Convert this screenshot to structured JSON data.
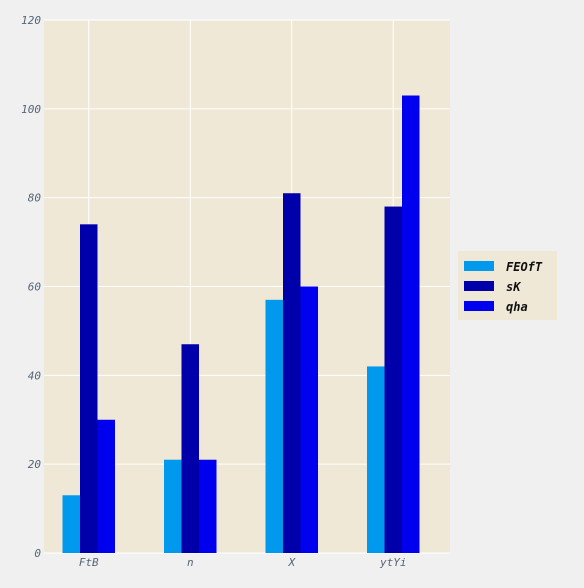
{
  "chart_data": {
    "type": "bar",
    "title": "",
    "xlabel": "",
    "ylabel": "",
    "categories": [
      "FtB",
      "n",
      "X",
      "ytYi"
    ],
    "series": [
      {
        "name": "FEOfT",
        "color": "#0099ee",
        "values": [
          13,
          21,
          57,
          42
        ]
      },
      {
        "name": "sK",
        "color": "#0000aa",
        "values": [
          74,
          47,
          81,
          78
        ]
      },
      {
        "name": "qha",
        "color": "#0000ee",
        "values": [
          30,
          21,
          60,
          103
        ]
      }
    ],
    "ylim": [
      0,
      120
    ],
    "yticks": [
      0,
      20,
      40,
      60,
      80,
      100,
      120
    ],
    "grid": true,
    "legend_position": "right",
    "colors": {
      "plot_background": "#efe8d6",
      "figure_background": "#f0f0f0",
      "grid": "#ffffff",
      "tick_label": "#556677"
    }
  }
}
